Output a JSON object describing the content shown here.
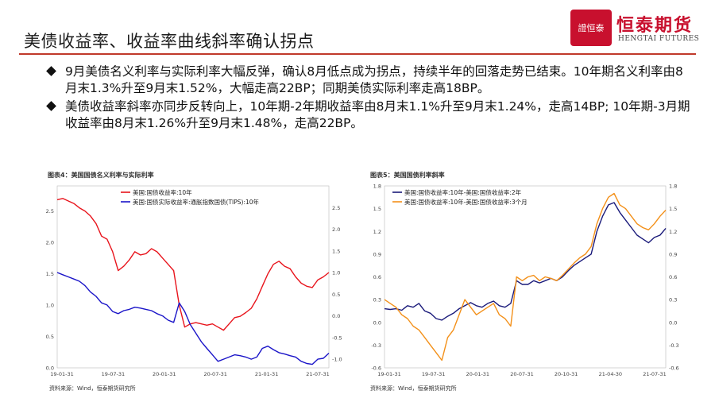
{
  "header": {
    "title": "美债收益率、收益率曲线斜率确认拐点",
    "logo_mark": "證恒泰",
    "logo_name": "恒泰期货",
    "logo_en": "HENGTAI FUTURES"
  },
  "bullets": [
    "9月美债名义利率与实际利率大幅反弹，确认8月低点成为拐点，持续半年的回落走势已结束。10年期名义利率由8月末1.3%升至9月末1.52%，大幅走高22BP；同期美债实际利率走高18BP。",
    "美债收益率斜率亦同步反转向上，10年期-2年期收益率由8月末1.1%升至9月末1.24%，走高14BP; 10年期-3月期收益率由8月末1.26%升至9月末1.48%，走高22BP。"
  ],
  "chart_data": [
    {
      "type": "line",
      "caption": "图表4：美国国债名义利率与实际利率",
      "source": "资料来源：Wind，恒泰期货研究所",
      "x_ticks": [
        "19-01-31",
        "19-07-31",
        "20-01-31",
        "20-07-31",
        "21-01-31",
        "21-07-31"
      ],
      "y_left_ticks": [
        "2.5",
        "2.0",
        "1.5",
        "1.0",
        "0.5",
        "0.0"
      ],
      "y_right_ticks": [
        "2.5",
        "2.0",
        "1.5",
        "1.0",
        "0.5",
        "0.0",
        "-0.5",
        "-1.0"
      ],
      "ylim_left": [
        0.0,
        2.9
      ],
      "ylim_right": [
        -1.2,
        3.0
      ],
      "series": [
        {
          "name": "美国:国债收益率:10年",
          "color": "#e8141c",
          "axis": "left",
          "values": [
            2.68,
            2.7,
            2.66,
            2.62,
            2.55,
            2.5,
            2.42,
            2.3,
            2.1,
            2.05,
            1.85,
            1.55,
            1.62,
            1.72,
            1.85,
            1.8,
            1.82,
            1.9,
            1.85,
            1.75,
            1.65,
            1.55,
            1.0,
            0.65,
            0.7,
            0.72,
            0.7,
            0.68,
            0.7,
            0.65,
            0.6,
            0.7,
            0.8,
            0.82,
            0.88,
            0.95,
            1.1,
            1.3,
            1.5,
            1.65,
            1.7,
            1.62,
            1.58,
            1.45,
            1.35,
            1.3,
            1.28,
            1.4,
            1.45,
            1.52
          ]
        },
        {
          "name": "美国:国债实际收益率:通胀指数国债(TIPS):10年",
          "color": "#1a14c8",
          "axis": "right",
          "values": [
            1.0,
            0.95,
            0.9,
            0.85,
            0.8,
            0.7,
            0.55,
            0.45,
            0.3,
            0.25,
            0.1,
            0.05,
            0.12,
            0.15,
            0.2,
            0.18,
            0.15,
            0.12,
            0.05,
            0.0,
            -0.1,
            -0.15,
            0.3,
            0.1,
            -0.2,
            -0.4,
            -0.6,
            -0.75,
            -0.9,
            -1.05,
            -1.0,
            -0.95,
            -0.9,
            -0.92,
            -0.95,
            -1.0,
            -0.95,
            -0.75,
            -0.7,
            -0.78,
            -0.85,
            -0.88,
            -0.92,
            -0.95,
            -1.05,
            -1.1,
            -1.12,
            -1.0,
            -0.98,
            -0.86
          ]
        }
      ]
    },
    {
      "type": "line",
      "caption": "图表5：美国国债利率斜率",
      "source": "资料来源：Wind，恒泰期货研究所",
      "x_ticks": [
        "19-01-31",
        "19-07-31",
        "20-01-31",
        "20-07-31",
        "20-10-31",
        "21-04-30",
        "21-07-31"
      ],
      "y_left_ticks": [
        "1.8",
        "1.5",
        "1.2",
        "0.9",
        "0.6",
        "0.3",
        "0.0",
        "-0.3",
        "-0.6"
      ],
      "y_right_ticks": [
        "1.8",
        "1.5",
        "1.2",
        "0.9",
        "0.6",
        "0.3",
        "0.0",
        "-0.3",
        "-0.6"
      ],
      "ylim_left": [
        -0.6,
        1.8
      ],
      "series": [
        {
          "name": "美国:国债收益率:10年-美国:国债收益率:2年",
          "color": "#1a1a7a",
          "values": [
            0.18,
            0.17,
            0.18,
            0.16,
            0.22,
            0.2,
            0.25,
            0.15,
            0.12,
            0.05,
            0.03,
            0.08,
            0.12,
            0.18,
            0.22,
            0.26,
            0.22,
            0.2,
            0.25,
            0.28,
            0.22,
            0.2,
            0.25,
            0.55,
            0.5,
            0.5,
            0.55,
            0.52,
            0.55,
            0.58,
            0.55,
            0.6,
            0.68,
            0.75,
            0.8,
            0.85,
            0.9,
            1.2,
            1.4,
            1.55,
            1.58,
            1.45,
            1.35,
            1.25,
            1.15,
            1.1,
            1.05,
            1.12,
            1.15,
            1.24
          ]
        },
        {
          "name": "美国:国债收益率:10年-美国:国债收益率:3个月",
          "color": "#f39019",
          "values": [
            0.3,
            0.25,
            0.2,
            0.1,
            0.05,
            -0.05,
            -0.1,
            -0.2,
            -0.3,
            -0.4,
            -0.5,
            -0.2,
            -0.1,
            0.1,
            0.3,
            0.2,
            0.1,
            0.15,
            0.2,
            0.25,
            0.1,
            0.05,
            -0.05,
            0.6,
            0.55,
            0.6,
            0.62,
            0.55,
            0.6,
            0.58,
            0.55,
            0.62,
            0.7,
            0.78,
            0.85,
            0.9,
            1.0,
            1.3,
            1.5,
            1.65,
            1.7,
            1.55,
            1.5,
            1.4,
            1.3,
            1.25,
            1.22,
            1.3,
            1.4,
            1.48
          ]
        }
      ]
    }
  ]
}
